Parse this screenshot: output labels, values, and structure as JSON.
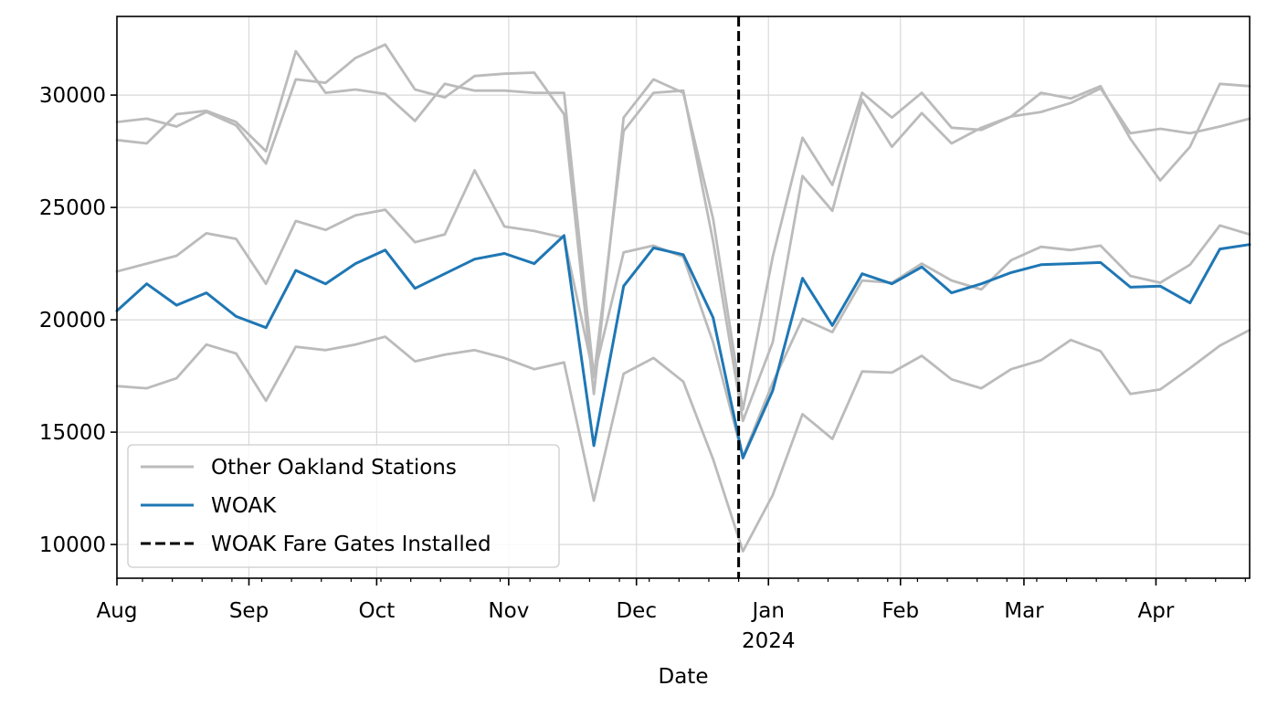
{
  "chart_data": {
    "type": "line",
    "title": "",
    "xlabel": "Date",
    "ylabel": "",
    "x_type": "date",
    "xlim": [
      "2023-08-01",
      "2024-04-23"
    ],
    "ylim": [
      8500,
      33500
    ],
    "grid": true,
    "legend_placement": "lower-left",
    "x_tick_labels": [
      {
        "date": "2023-08-01",
        "label": "Aug"
      },
      {
        "date": "2023-09-01",
        "label": "Sep"
      },
      {
        "date": "2023-10-01",
        "label": "Oct"
      },
      {
        "date": "2023-11-01",
        "label": "Nov"
      },
      {
        "date": "2023-12-01",
        "label": "Dec"
      },
      {
        "date": "2024-01-01",
        "label": "Jan",
        "sublabel": "2024"
      },
      {
        "date": "2024-02-01",
        "label": "Feb"
      },
      {
        "date": "2024-03-01",
        "label": "Mar"
      },
      {
        "date": "2024-04-01",
        "label": "Apr"
      }
    ],
    "y_ticks": [
      10000,
      15000,
      20000,
      25000,
      30000
    ],
    "x": [
      "2023-08-01",
      "2023-08-08",
      "2023-08-15",
      "2023-08-22",
      "2023-08-29",
      "2023-09-05",
      "2023-09-12",
      "2023-09-19",
      "2023-09-26",
      "2023-10-03",
      "2023-10-10",
      "2023-10-17",
      "2023-10-24",
      "2023-10-31",
      "2023-11-07",
      "2023-11-14",
      "2023-11-21",
      "2023-11-28",
      "2023-12-05",
      "2023-12-12",
      "2023-12-19",
      "2023-12-26",
      "2024-01-02",
      "2024-01-09",
      "2024-01-16",
      "2024-01-23",
      "2024-01-30",
      "2024-02-06",
      "2024-02-13",
      "2024-02-20",
      "2024-02-27",
      "2024-03-05",
      "2024-03-12",
      "2024-03-19",
      "2024-03-26",
      "2024-04-02",
      "2024-04-09",
      "2024-04-16",
      "2024-04-23"
    ],
    "series": [
      {
        "name": "Other Oakland Stations",
        "color": "#bbbbbb",
        "values": [
          28800,
          28950,
          28600,
          29250,
          28650,
          26950,
          30700,
          30550,
          31650,
          32250,
          30250,
          29900,
          30850,
          30950,
          31000,
          29150,
          16700,
          29000,
          30700,
          30100,
          24500,
          16000,
          22800,
          28100,
          26000,
          30100,
          29000,
          30100,
          28550,
          28450,
          29050,
          29250,
          29650,
          30300,
          28300,
          28500,
          28300,
          28600,
          28950
        ]
      },
      {
        "name": "",
        "color": "#bbbbbb",
        "values": [
          28000,
          27850,
          29150,
          29300,
          28800,
          27500,
          31950,
          30100,
          30250,
          30050,
          28850,
          30500,
          30200,
          30200,
          30100,
          30100,
          17450,
          28400,
          30100,
          30200,
          23500,
          15500,
          19000,
          26400,
          24850,
          29800,
          27700,
          29200,
          27850,
          28550,
          29050,
          30100,
          29850,
          30400,
          28050,
          26200,
          27700,
          30500,
          30400
        ]
      },
      {
        "name": "",
        "color": "#bbbbbb",
        "values": [
          22150,
          22500,
          22850,
          23850,
          23600,
          21600,
          24400,
          24000,
          24650,
          24900,
          23450,
          23800,
          26650,
          24150,
          23950,
          23650,
          17500,
          23000,
          23300,
          22800,
          19000,
          13900,
          17200,
          20050,
          19450,
          21750,
          21650,
          22500,
          21750,
          21350,
          22650,
          23250,
          23100,
          23300,
          21950,
          21650,
          22450,
          24200,
          23800
        ]
      },
      {
        "name": "",
        "color": "#bbbbbb",
        "values": [
          17050,
          16950,
          17400,
          18900,
          18500,
          16400,
          18800,
          18650,
          18900,
          19250,
          18150,
          18450,
          18650,
          18300,
          17800,
          18100,
          11950,
          17600,
          18300,
          17250,
          13800,
          9700,
          12200,
          15800,
          14700,
          17700,
          17650,
          18400,
          17350,
          16950,
          17800,
          18200,
          19100,
          18600,
          16700,
          16900,
          17850,
          18850,
          19550
        ]
      },
      {
        "name": "WOAK",
        "color": "#1f77b4",
        "values": [
          20400,
          21600,
          20650,
          21200,
          20150,
          19650,
          22200,
          21600,
          22500,
          23100,
          21400,
          22050,
          22700,
          22950,
          22500,
          23750,
          14400,
          21500,
          23200,
          22900,
          20100,
          13850,
          16850,
          21850,
          19750,
          22050,
          21600,
          22350,
          21200,
          21600,
          22100,
          22450,
          22500,
          22550,
          21450,
          21500,
          20750,
          23150,
          23350
        ]
      }
    ],
    "event_line": {
      "date": "2023-12-25",
      "label": "WOAK Fare Gates Installed",
      "color": "#000000",
      "style": "dashed"
    },
    "legend": [
      {
        "label": "Other Oakland Stations",
        "color": "#bbbbbb",
        "style": "solid"
      },
      {
        "label": "WOAK",
        "color": "#1f77b4",
        "style": "solid"
      },
      {
        "label": "WOAK Fare Gates Installed",
        "color": "#000000",
        "style": "dashed"
      }
    ]
  }
}
